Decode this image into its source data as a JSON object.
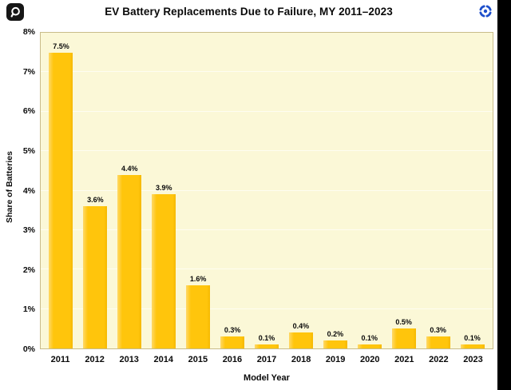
{
  "header": {
    "logo_icon": "speech-bubble-logo",
    "scan_icon": "scan-focus"
  },
  "colors": {
    "bar": "#FFC50C",
    "plot_background": "#FBF8D7",
    "plot_border": "#C9BC8A",
    "gridline": "#FFFFFF",
    "icon_blue": "#1D4FCB",
    "side_band": "#000000",
    "text": "#0A0A0A"
  },
  "chart_data": {
    "type": "bar",
    "title": "EV Battery Replacements Due to Failure, MY 2011–2023",
    "xlabel": "Model Year",
    "ylabel": "Share of Batteries",
    "categories": [
      "2011",
      "2012",
      "2013",
      "2014",
      "2015",
      "2016",
      "2017",
      "2018",
      "2019",
      "2020",
      "2021",
      "2022",
      "2023"
    ],
    "values": [
      7.5,
      3.6,
      4.4,
      3.9,
      1.6,
      0.3,
      0.1,
      0.4,
      0.2,
      0.1,
      0.5,
      0.3,
      0.1
    ],
    "value_labels": [
      "7.5%",
      "3.6%",
      "4.4%",
      "3.9%",
      "1.6%",
      "0.3%",
      "0.1%",
      "0.4%",
      "0.2%",
      "0.1%",
      "0.5%",
      "0.3%",
      "0.1%"
    ],
    "ylim": [
      0,
      8
    ],
    "yticks": [
      "0%",
      "1%",
      "2%",
      "3%",
      "4%",
      "5%",
      "6%",
      "7%",
      "8%"
    ],
    "grid": true,
    "legend": false
  }
}
